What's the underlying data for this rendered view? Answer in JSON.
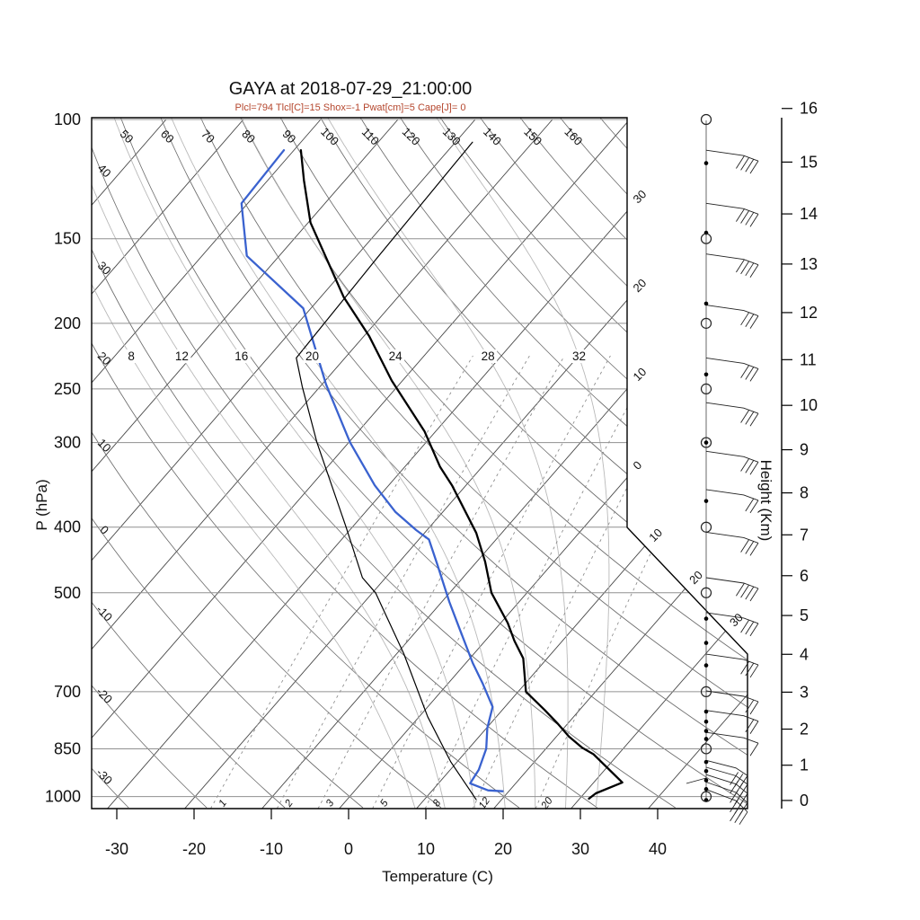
{
  "title": "GAYA at 2018-07-29_21:00:00",
  "subtitle": "Plcl=794 Tlcl[C]=15 Shox=-1 Pwat[cm]=5 Cape[J]= 0",
  "subtitle_color": "#b5472e",
  "axes": {
    "x_label": "Temperature (C)",
    "x_ticks": [
      -30,
      -20,
      -10,
      0,
      10,
      20,
      30,
      40
    ],
    "pressure_label": "P (hPa)",
    "pressure_ticks": [
      100,
      150,
      200,
      250,
      300,
      400,
      500,
      700,
      850,
      1000
    ],
    "height_label": "Height (Km)",
    "height_ticks_km": [
      0,
      1,
      2,
      3,
      4,
      5,
      6,
      7,
      8,
      9,
      10,
      11,
      12,
      13,
      14,
      15,
      16
    ]
  },
  "reference_lines": {
    "dry_adiabat_labels": [
      -30,
      -20,
      -10,
      0,
      10,
      20,
      30,
      40,
      50,
      60,
      70,
      80,
      90,
      100,
      110,
      120,
      130,
      140,
      150,
      160
    ],
    "isotherm_edge_labels_right": [
      "30",
      "20",
      "10",
      "0"
    ],
    "isotherm_edge_values_right": [
      -30,
      -20,
      -10,
      0
    ],
    "isotherm_diag_labels": [
      10,
      20,
      30
    ],
    "moist_adiabat_labels": [
      8,
      12,
      16,
      20,
      24,
      28,
      32
    ],
    "mixing_ratio_labels": [
      1,
      2,
      3,
      5,
      8,
      12,
      20
    ]
  },
  "chart_data": {
    "type": "line",
    "variant": "skew-t-log-p",
    "title": "GAYA at 2018-07-29_21:00:00",
    "xlabel": "Temperature (C)",
    "ylabel_left": "P (hPa)",
    "ylabel_right": "Height (Km)",
    "x_tick_range_c": [
      -30,
      40
    ],
    "pressure_range_hpa": [
      100,
      1050
    ],
    "series": [
      {
        "name": "temperature",
        "color": "#000000",
        "width": 2.3,
        "points_p_t": [
          [
            1007,
            31.2
          ],
          [
            989,
            31.5
          ],
          [
            953,
            33.7
          ],
          [
            866,
            26.8
          ],
          [
            847,
            24.6
          ],
          [
            815,
            21.6
          ],
          [
            779,
            18.6
          ],
          [
            745,
            15.5
          ],
          [
            700,
            11.0
          ],
          [
            625,
            6.9
          ],
          [
            589,
            3.8
          ],
          [
            554,
            0.9
          ],
          [
            500,
            -4.6
          ],
          [
            450,
            -8.9
          ],
          [
            408,
            -13.3
          ],
          [
            347,
            -21.8
          ],
          [
            326,
            -25.4
          ],
          [
            289,
            -31.4
          ],
          [
            243,
            -41.4
          ],
          [
            209,
            -49.3
          ],
          [
            183,
            -57.0
          ],
          [
            142,
            -69.7
          ],
          [
            123,
            -75.3
          ],
          [
            111,
            -79.1
          ]
        ]
      },
      {
        "name": "dewpoint",
        "color": "#3a62cf",
        "width": 2.3,
        "points_p_t": [
          [
            982,
            19.2
          ],
          [
            979,
            17.2
          ],
          [
            956,
            14.1
          ],
          [
            913,
            13.7
          ],
          [
            850,
            12.3
          ],
          [
            792,
            10.1
          ],
          [
            737,
            8.4
          ],
          [
            681,
            4.5
          ],
          [
            635,
            0.9
          ],
          [
            566,
            -4.6
          ],
          [
            516,
            -9.0
          ],
          [
            453,
            -14.9
          ],
          [
            417,
            -18.7
          ],
          [
            404,
            -21.4
          ],
          [
            380,
            -26.1
          ],
          [
            347,
            -31.8
          ],
          [
            300,
            -39.8
          ],
          [
            246,
            -49.5
          ],
          [
            190,
            -61.0
          ],
          [
            159,
            -74.2
          ],
          [
            133,
            -80.8
          ],
          [
            111,
            -81.3
          ]
        ]
      },
      {
        "name": "parcel-aux",
        "color": "#000000",
        "width": 1.2,
        "points_p_t": [
          [
            1010,
            16.7
          ],
          [
            889,
            9.2
          ],
          [
            762,
            1.1
          ],
          [
            615,
            -9.1
          ],
          [
            500,
            -19.6
          ],
          [
            475,
            -23.0
          ],
          [
            400,
            -30.8
          ],
          [
            300,
            -44.1
          ],
          [
            248,
            -52.3
          ],
          [
            225,
            -56.3
          ],
          [
            160,
            -57.1
          ],
          [
            108,
            -57.8
          ]
        ]
      }
    ],
    "wind_column": {
      "mandatory_level_circles_hpa": [
        100,
        150,
        200,
        250,
        300,
        400,
        500,
        700,
        850,
        1000
      ],
      "significant_level_dots_hpa": [
        116,
        147,
        187,
        238,
        300,
        366,
        546,
        593,
        640,
        749,
        775,
        800,
        822,
        889,
        917,
        946,
        975,
        1012
      ],
      "barbs": [
        {
          "p": 111,
          "n": 4
        },
        {
          "p": 133,
          "n": 4
        },
        {
          "p": 158,
          "n": 4
        },
        {
          "p": 188,
          "n": 3
        },
        {
          "p": 225,
          "n": 3
        },
        {
          "p": 262,
          "n": 3
        },
        {
          "p": 309,
          "n": 3
        },
        {
          "p": 352,
          "n": 2
        },
        {
          "p": 407,
          "n": 3
        },
        {
          "p": 475,
          "n": 4
        },
        {
          "p": 535,
          "n": 3
        },
        {
          "p": 616,
          "n": 3
        },
        {
          "p": 698,
          "n": 2
        },
        {
          "p": 746,
          "n": 2
        },
        {
          "p": 804,
          "n": 1
        }
      ],
      "surface_cluster_barbs_hpa": [
        884,
        905,
        928,
        952,
        976
      ]
    }
  }
}
